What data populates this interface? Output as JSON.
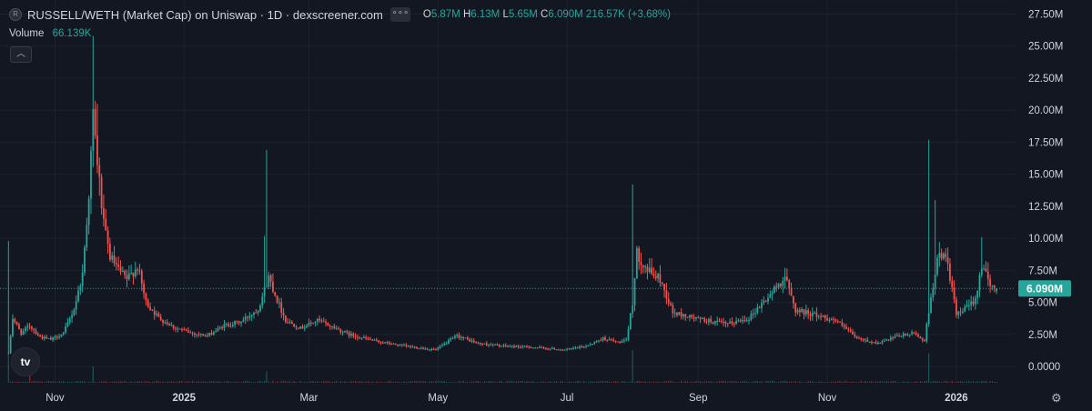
{
  "header": {
    "symbol_logo": "R",
    "title": "RUSSELL/WETH (Market Cap) on Uniswap · 1D · dexscreener.com",
    "more_label": "∘∘∘",
    "ohlc": {
      "o_label": "O",
      "o_value": "5.87M",
      "h_label": "H",
      "h_value": "6.13M",
      "l_label": "L",
      "l_value": "5.65M",
      "c_label": "C",
      "c_value": "6.090M",
      "change": "216.57K (+3.68%)"
    }
  },
  "volume_legend": {
    "label": "Volume",
    "value": "66.139K"
  },
  "collapse_icon": "chevron-up-icon",
  "brand_logo": "tv",
  "settings_icon": "gear-icon",
  "colors": {
    "up": "#26a69a",
    "down": "#ef5350",
    "background": "#131722",
    "grid": "#1e222d",
    "text": "#d1d4dc"
  },
  "chart_data": {
    "type": "candlestick",
    "title": "RUSSELL/WETH (Market Cap) on Uniswap · 1D · dexscreener.com",
    "y_axis": {
      "ticks": [
        0,
        2.5,
        5,
        7.5,
        10,
        12.5,
        15,
        17.5,
        20,
        22.5,
        25,
        27.5
      ],
      "tick_labels": [
        "0.0000",
        "2.50M",
        "5.00M",
        "7.50M",
        "10.00M",
        "12.50M",
        "15.00M",
        "17.50M",
        "20.00M",
        "22.50M",
        "25.00M",
        "27.50M"
      ],
      "unit": "M",
      "range": [
        -1.2,
        28.6
      ]
    },
    "x_axis": {
      "range": [
        "2024-10-06",
        "2026-01-29"
      ],
      "ticks": [
        {
          "label": "Nov",
          "date": "2024-11-01"
        },
        {
          "label": "2025",
          "date": "2025-01-01"
        },
        {
          "label": "Mar",
          "date": "2025-03-01"
        },
        {
          "label": "May",
          "date": "2025-05-01"
        },
        {
          "label": "Jul",
          "date": "2025-07-01"
        },
        {
          "label": "Sep",
          "date": "2025-09-01"
        },
        {
          "label": "Nov",
          "date": "2025-11-01"
        },
        {
          "label": "2026",
          "date": "2026-01-01"
        }
      ]
    },
    "last_price": {
      "value": 6.09,
      "label": "6.090M"
    },
    "price_anchors": [
      [
        "2024-10-10",
        1.0
      ],
      [
        "2024-10-12",
        3.8
      ],
      [
        "2024-10-16",
        2.6
      ],
      [
        "2024-10-20",
        3.2
      ],
      [
        "2024-10-25",
        2.3
      ],
      [
        "2024-10-30",
        2.1
      ],
      [
        "2024-11-05",
        2.6
      ],
      [
        "2024-11-10",
        4.5
      ],
      [
        "2024-11-14",
        7.2
      ],
      [
        "2024-11-17",
        13.5
      ],
      [
        "2024-11-19",
        19.5
      ],
      [
        "2024-11-21",
        16.0
      ],
      [
        "2024-11-24",
        11.0
      ],
      [
        "2024-11-27",
        8.6
      ],
      [
        "2024-12-01",
        7.5
      ],
      [
        "2024-12-05",
        6.8
      ],
      [
        "2024-12-10",
        7.8
      ],
      [
        "2024-12-14",
        5.0
      ],
      [
        "2024-12-20",
        3.8
      ],
      [
        "2024-12-28",
        3.0
      ],
      [
        "2025-01-05",
        2.6
      ],
      [
        "2025-01-12",
        2.4
      ],
      [
        "2025-01-20",
        3.2
      ],
      [
        "2025-01-28",
        3.5
      ],
      [
        "2025-02-05",
        4.5
      ],
      [
        "2025-02-10",
        7.0
      ],
      [
        "2025-02-14",
        5.2
      ],
      [
        "2025-02-18",
        3.6
      ],
      [
        "2025-02-25",
        3.0
      ],
      [
        "2025-03-05",
        3.6
      ],
      [
        "2025-03-12",
        3.1
      ],
      [
        "2025-03-20",
        2.5
      ],
      [
        "2025-04-01",
        2.0
      ],
      [
        "2025-04-15",
        1.6
      ],
      [
        "2025-04-30",
        1.3
      ],
      [
        "2025-05-10",
        2.4
      ],
      [
        "2025-05-20",
        1.8
      ],
      [
        "2025-06-01",
        1.6
      ],
      [
        "2025-06-15",
        1.5
      ],
      [
        "2025-06-30",
        1.3
      ],
      [
        "2025-07-10",
        1.6
      ],
      [
        "2025-07-18",
        2.2
      ],
      [
        "2025-07-25",
        1.9
      ],
      [
        "2025-07-29",
        2.0
      ],
      [
        "2025-08-01",
        5.0
      ],
      [
        "2025-08-03",
        8.8
      ],
      [
        "2025-08-08",
        7.5
      ],
      [
        "2025-08-14",
        6.8
      ],
      [
        "2025-08-20",
        4.2
      ],
      [
        "2025-09-01",
        3.7
      ],
      [
        "2025-09-15",
        3.3
      ],
      [
        "2025-09-25",
        3.8
      ],
      [
        "2025-10-05",
        5.6
      ],
      [
        "2025-10-12",
        7.0
      ],
      [
        "2025-10-17",
        4.4
      ],
      [
        "2025-10-25",
        4.1
      ],
      [
        "2025-11-05",
        3.6
      ],
      [
        "2025-11-15",
        2.2
      ],
      [
        "2025-11-25",
        1.8
      ],
      [
        "2025-12-05",
        2.4
      ],
      [
        "2025-12-12",
        2.6
      ],
      [
        "2025-12-17",
        2.0
      ],
      [
        "2025-12-20",
        5.5
      ],
      [
        "2025-12-24",
        9.0
      ],
      [
        "2025-12-28",
        8.0
      ],
      [
        "2026-01-01",
        4.0
      ],
      [
        "2026-01-06",
        4.6
      ],
      [
        "2026-01-10",
        5.3
      ],
      [
        "2026-01-13",
        8.0
      ],
      [
        "2026-01-17",
        6.2
      ],
      [
        "2026-01-20",
        6.1
      ]
    ],
    "wick_spikes": [
      {
        "date": "2024-10-10",
        "high": 9.8
      },
      {
        "date": "2024-11-19",
        "high": 25.8
      },
      {
        "date": "2024-11-21",
        "high": 20.5
      },
      {
        "date": "2025-02-09",
        "high": 16.9
      },
      {
        "date": "2025-02-08",
        "high": 10.2
      },
      {
        "date": "2025-08-01",
        "high": 14.2
      },
      {
        "date": "2025-10-12",
        "high": 7.7
      },
      {
        "date": "2025-12-19",
        "high": 17.7
      },
      {
        "date": "2025-12-22",
        "high": 13.0
      },
      {
        "date": "2026-01-13",
        "high": 10.1
      }
    ],
    "volume_spikes": [
      {
        "date": "2024-10-10",
        "value": 0.85
      },
      {
        "date": "2024-10-20",
        "value": 0.6
      },
      {
        "date": "2024-11-19",
        "value": 0.5
      },
      {
        "date": "2025-02-09",
        "value": 0.35
      },
      {
        "date": "2025-08-01",
        "value": 1.0
      },
      {
        "date": "2025-12-19",
        "value": 0.9
      }
    ]
  }
}
